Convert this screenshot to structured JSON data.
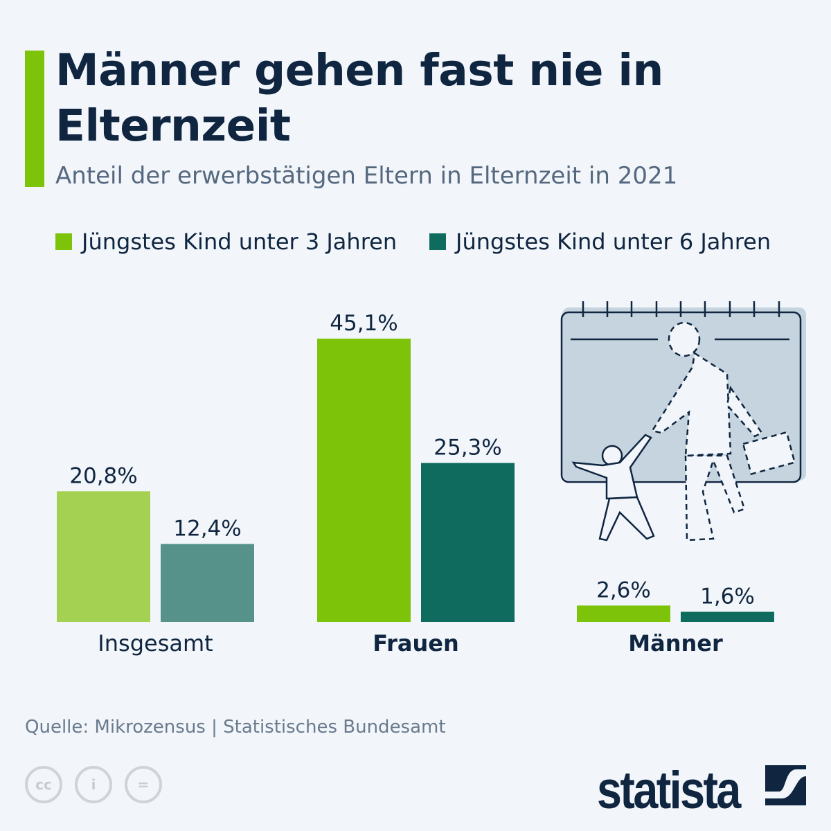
{
  "title": "Männer gehen fast nie in Elternzeit",
  "subtitle": "Anteil der erwerbstätigen Eltern in Elternzeit in 2021",
  "source": "Quelle: Mikrozensus | Statistisches Bundesamt",
  "brand": "statista",
  "colors": {
    "accent": "#7dc30a",
    "series1": "#7dc30a",
    "series2": "#0e6b5e",
    "series1_light": "#a5d152",
    "series2_light": "#56918a",
    "text": "#0f2540"
  },
  "chart_data": {
    "type": "bar",
    "title": "Männer gehen fast nie in Elternzeit",
    "subtitle": "Anteil der erwerbstätigen Eltern in Elternzeit in 2021",
    "categories": [
      "Insgesamt",
      "Frauen",
      "Männer"
    ],
    "series": [
      {
        "name": "Jüngstes Kind unter 3 Jahren",
        "values": [
          20.8,
          45.1,
          2.6
        ],
        "labels": [
          "20,8%",
          "45,1%",
          "2,6%"
        ]
      },
      {
        "name": "Jüngstes Kind unter 6 Jahren",
        "values": [
          12.4,
          25.3,
          1.6
        ],
        "labels": [
          "12,4%",
          "25,3%",
          "1,6%"
        ]
      }
    ],
    "unit": "%",
    "ylim": [
      0,
      50
    ],
    "grid": false,
    "legend_position": "top"
  },
  "icons": [
    "cc-icon",
    "by-icon",
    "nd-icon",
    "statista-logo-icon",
    "parent-child-calendar-illustration"
  ]
}
